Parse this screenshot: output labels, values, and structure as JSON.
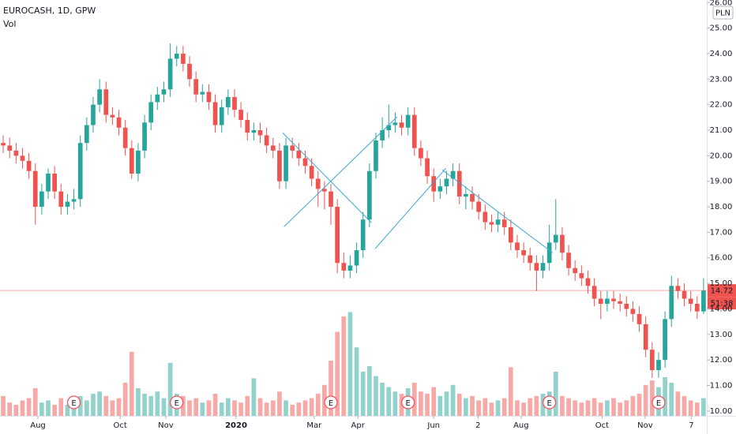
{
  "chart_data": {
    "type": "candlestick",
    "title": "EUROCASH, 1D, GPW",
    "volume_label": "Vol",
    "currency": "PLN",
    "last_price": 14.72,
    "countdown": "51:38",
    "up_color": "#26a69a",
    "down_color": "#ef5350",
    "drawing_color": "#3aa6d4",
    "grid": false,
    "xlim": [
      -0.5,
      109.5
    ],
    "xticks": [
      {
        "value": 5.4,
        "label": "Aug"
      },
      {
        "value": 18.2,
        "label": "Oct"
      },
      {
        "value": 25.3,
        "label": "Nov"
      },
      {
        "value": 36.25,
        "label": "2020"
      },
      {
        "value": 48.4,
        "label": "Mar"
      },
      {
        "value": 55.2,
        "label": "Apr"
      },
      {
        "value": 67,
        "label": "Jun"
      },
      {
        "value": 73.9,
        "label": "2"
      },
      {
        "value": 80.6,
        "label": "Aug"
      },
      {
        "value": 93.2,
        "label": "Oct"
      },
      {
        "value": 99.9,
        "label": "Nov"
      },
      {
        "value": 107.1,
        "label": "7"
      }
    ],
    "ylim": [
      9.81,
      26.1
    ],
    "yticks": [
      {
        "value": 10,
        "label": "10.00"
      },
      {
        "value": 11,
        "label": "11.00"
      },
      {
        "value": 12,
        "label": "12.00"
      },
      {
        "value": 13,
        "label": "13.00"
      },
      {
        "value": 14,
        "label": "14.00"
      },
      {
        "value": 15,
        "label": "15.00"
      },
      {
        "value": 16,
        "label": "16.00"
      },
      {
        "value": 17,
        "label": "17.00"
      },
      {
        "value": 18,
        "label": "18.00"
      },
      {
        "value": 19,
        "label": "19.00"
      },
      {
        "value": 20,
        "label": "20.00"
      },
      {
        "value": 21,
        "label": "21.00"
      },
      {
        "value": 22,
        "label": "22.00"
      },
      {
        "value": 23,
        "label": "23.00"
      },
      {
        "value": 24,
        "label": "24.00"
      },
      {
        "value": 25,
        "label": "25.00"
      },
      {
        "value": 26,
        "label": "26.00"
      }
    ],
    "open": [
      20.5,
      20.4,
      20.2,
      20.0,
      19.8,
      19.4,
      18.0,
      18.6,
      19.3,
      18.6,
      18.0,
      18.2,
      18.3,
      20.5,
      21.2,
      22.0,
      22.6,
      21.6,
      21.5,
      21.1,
      20.3,
      19.3,
      20.2,
      21.3,
      22.1,
      22.4,
      22.6,
      23.8,
      24.0,
      23.6,
      23.0,
      22.4,
      22.5,
      22.1,
      21.2,
      21.9,
      22.3,
      21.8,
      21.4,
      20.9,
      21.0,
      20.8,
      20.4,
      20.2,
      19.0,
      20.4,
      20.2,
      19.9,
      19.6,
      19.1,
      18.7,
      18.6,
      18.0,
      15.8,
      15.5,
      15.7,
      16.3,
      17.5,
      19.4,
      20.6,
      21.0,
      21.2,
      21.3,
      21.1,
      21.6,
      20.3,
      19.9,
      19.2,
      18.6,
      18.8,
      19.1,
      19.4,
      18.4,
      18.5,
      18.2,
      17.8,
      17.4,
      17.3,
      17.5,
      17.2,
      16.6,
      16.3,
      16.1,
      15.8,
      15.5,
      15.8,
      16.6,
      16.9,
      16.2,
      15.6,
      15.4,
      15.2,
      14.9,
      14.4,
      14.2,
      14.4,
      14.3,
      14.2,
      14.0,
      13.8,
      13.4,
      12.4,
      11.6,
      12.0,
      13.6,
      14.9,
      14.7,
      14.4,
      14.2,
      13.9
    ],
    "high": [
      20.8,
      20.7,
      20.5,
      20.3,
      20.1,
      19.7,
      18.9,
      19.5,
      19.6,
      18.9,
      18.5,
      18.7,
      20.8,
      21.5,
      22.3,
      23.0,
      22.9,
      21.9,
      21.8,
      21.4,
      20.6,
      20.5,
      21.6,
      22.4,
      22.7,
      22.9,
      24.4,
      24.3,
      24.3,
      23.9,
      23.3,
      22.8,
      22.8,
      22.4,
      22.2,
      22.6,
      22.6,
      22.1,
      21.7,
      21.3,
      21.3,
      21.1,
      20.7,
      20.5,
      20.7,
      20.7,
      20.5,
      20.2,
      19.9,
      19.4,
      19.0,
      18.9,
      18.3,
      16.2,
      16.1,
      16.6,
      17.8,
      19.7,
      20.9,
      21.5,
      22.0,
      21.7,
      21.6,
      21.9,
      21.9,
      20.6,
      20.2,
      19.5,
      19.1,
      19.4,
      19.7,
      19.7,
      18.8,
      18.8,
      18.5,
      18.1,
      17.7,
      17.8,
      17.8,
      17.5,
      16.9,
      16.6,
      16.4,
      16.1,
      16.1,
      17.3,
      18.3,
      17.2,
      16.5,
      15.9,
      15.7,
      15.5,
      15.2,
      14.7,
      14.7,
      14.7,
      14.6,
      14.5,
      14.3,
      14.1,
      13.7,
      12.7,
      12.3,
      13.9,
      15.3,
      15.2,
      15.0,
      14.7,
      14.5,
      15.2
    ],
    "low": [
      20.1,
      19.9,
      19.7,
      19.5,
      19.1,
      17.3,
      17.7,
      18.3,
      18.3,
      17.7,
      17.7,
      17.9,
      18.0,
      20.2,
      20.9,
      21.7,
      21.3,
      21.2,
      20.8,
      20.0,
      19.1,
      19.0,
      19.9,
      21.0,
      21.8,
      22.1,
      22.3,
      23.5,
      23.3,
      22.7,
      22.1,
      22.1,
      21.8,
      20.9,
      20.9,
      21.6,
      21.5,
      21.1,
      20.6,
      20.6,
      20.5,
      20.1,
      19.9,
      18.7,
      18.7,
      19.9,
      19.6,
      19.3,
      18.8,
      18.0,
      17.9,
      17.3,
      15.4,
      15.2,
      15.2,
      15.4,
      16.0,
      17.2,
      19.1,
      20.3,
      20.7,
      20.9,
      20.8,
      20.8,
      20.0,
      19.6,
      18.9,
      18.2,
      18.3,
      18.5,
      18.8,
      18.1,
      17.9,
      17.9,
      17.5,
      17.1,
      17.0,
      17.0,
      16.9,
      16.3,
      16.0,
      15.8,
      15.5,
      14.7,
      15.2,
      15.5,
      16.3,
      15.9,
      15.3,
      15.1,
      14.9,
      14.6,
      14.1,
      13.6,
      13.9,
      14.0,
      13.9,
      13.7,
      13.5,
      13.1,
      12.1,
      11.3,
      11.3,
      11.7,
      13.3,
      14.4,
      14.1,
      13.9,
      13.6,
      13.8
    ],
    "close": [
      20.4,
      20.2,
      20.0,
      19.8,
      19.4,
      18.0,
      18.6,
      19.3,
      18.6,
      18.0,
      18.2,
      18.3,
      20.5,
      21.2,
      22.0,
      22.6,
      21.6,
      21.5,
      21.1,
      20.3,
      19.3,
      20.2,
      21.3,
      22.1,
      22.4,
      22.6,
      23.8,
      24.0,
      23.6,
      23.0,
      22.4,
      22.5,
      22.1,
      21.2,
      21.9,
      22.3,
      21.8,
      21.4,
      20.9,
      21.0,
      20.8,
      20.4,
      20.2,
      19.0,
      20.4,
      20.2,
      19.9,
      19.6,
      19.1,
      18.7,
      18.6,
      18.0,
      15.8,
      15.5,
      15.7,
      16.3,
      17.5,
      19.4,
      20.6,
      21.0,
      21.2,
      21.3,
      21.1,
      21.6,
      20.3,
      19.9,
      19.2,
      18.6,
      18.8,
      19.1,
      19.4,
      18.4,
      18.5,
      18.2,
      17.8,
      17.4,
      17.3,
      17.5,
      17.2,
      16.6,
      16.3,
      16.1,
      15.8,
      15.5,
      15.8,
      16.6,
      16.9,
      16.2,
      15.6,
      15.4,
      15.2,
      14.9,
      14.4,
      14.2,
      14.4,
      14.3,
      14.2,
      14.0,
      13.8,
      13.4,
      12.4,
      11.6,
      12.0,
      13.6,
      14.9,
      14.7,
      14.4,
      14.2,
      13.9,
      14.72
    ],
    "volume_lim": [
      0,
      100
    ],
    "volume": [
      18,
      12,
      10,
      14,
      16,
      25,
      12,
      14,
      10,
      16,
      10,
      12,
      18,
      14,
      20,
      22,
      18,
      14,
      16,
      30,
      58,
      25,
      20,
      18,
      22,
      16,
      48,
      20,
      18,
      14,
      16,
      12,
      14,
      20,
      12,
      16,
      14,
      12,
      18,
      34,
      16,
      12,
      14,
      22,
      14,
      10,
      12,
      14,
      16,
      20,
      28,
      50,
      76,
      90,
      94,
      62,
      40,
      45,
      36,
      30,
      26,
      22,
      20,
      25,
      30,
      22,
      20,
      26,
      18,
      22,
      28,
      20,
      16,
      18,
      14,
      16,
      12,
      14,
      16,
      44,
      14,
      12,
      16,
      18,
      20,
      22,
      40,
      18,
      16,
      14,
      12,
      14,
      16,
      12,
      14,
      16,
      12,
      14,
      18,
      20,
      28,
      32,
      26,
      35,
      30,
      22,
      18,
      14,
      12,
      16
    ],
    "earnings": [
      {
        "x": 11,
        "label": "E"
      },
      {
        "x": 27,
        "label": "E"
      },
      {
        "x": 51,
        "label": "E"
      },
      {
        "x": 63,
        "label": "E"
      },
      {
        "x": 85,
        "label": "E"
      },
      {
        "x": 102,
        "label": "E"
      }
    ],
    "drawings": [
      {
        "x": [
          43.5,
          57.3
        ],
        "y": [
          20.9,
          17.38
        ]
      },
      {
        "x": [
          43.7,
          61.3
        ],
        "y": [
          17.22,
          21.52
        ]
      },
      {
        "x": [
          57.9,
          68.9
        ],
        "y": [
          16.36,
          19.51
        ]
      },
      {
        "x": [
          68.3,
          85.5
        ],
        "y": [
          19.45,
          16.2
        ]
      }
    ]
  }
}
